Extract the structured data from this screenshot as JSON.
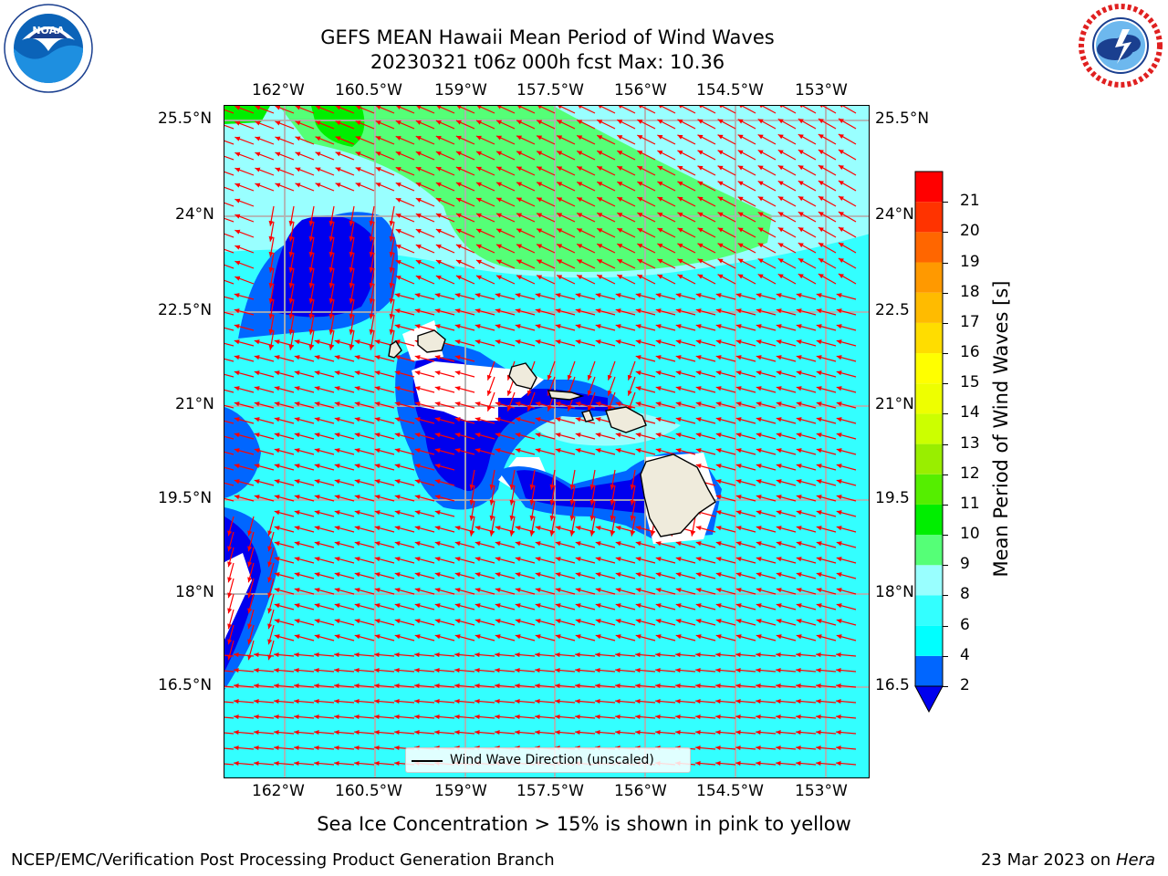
{
  "header": {
    "title_line1": "GEFS MEAN Hawaii Mean Period of Wind Waves",
    "title_line2": "20230321 t06z 000h fcst   Max: 10.36"
  },
  "logos": {
    "left": "noaa-logo",
    "right": "national-weather-service-logo"
  },
  "map": {
    "lon_labels": [
      "162°W",
      "160.5°W",
      "159°W",
      "157.5°W",
      "156°W",
      "154.5°W",
      "153°W"
    ],
    "lat_labels": [
      "25.5°N",
      "24°N",
      "22.5°N",
      "21°N",
      "19.5°N",
      "18°N",
      "16.5°N"
    ],
    "lat_labels_right": [
      "25.5°N",
      "24°N",
      "22.5",
      "21°N",
      "19.5",
      "18°N",
      "16.5"
    ],
    "legend": "Wind Wave Direction (unscaled)",
    "colors": {
      "ocean": "#33ffff",
      "land": "#efebdc",
      "arrow": "#ff0000",
      "deep_blue": "#0000ee"
    }
  },
  "colorbar": {
    "label": "Mean Period of Wind Waves [s]",
    "ticks": [
      "2",
      "4",
      "6",
      "8",
      "9",
      "10",
      "11",
      "12",
      "13",
      "14",
      "15",
      "16",
      "17",
      "18",
      "19",
      "20",
      "21"
    ],
    "colors": [
      "#0066ff",
      "#00ffff",
      "#33ffff",
      "#99ffff",
      "#55ff77",
      "#00ee00",
      "#55ee00",
      "#99ee00",
      "#ccff00",
      "#eeff00",
      "#ffff00",
      "#ffdd00",
      "#ffbb00",
      "#ff9900",
      "#ff6600",
      "#ff3300",
      "#ff0000"
    ],
    "extend_color": "#0000ee"
  },
  "footer": {
    "note": "Sea Ice Concentration > 15% is shown in pink to yellow",
    "credit": "NCEP/EMC/Verification Post Processing Product Generation Branch",
    "date": "23 Mar 2023 on ",
    "machine": "Hera"
  }
}
